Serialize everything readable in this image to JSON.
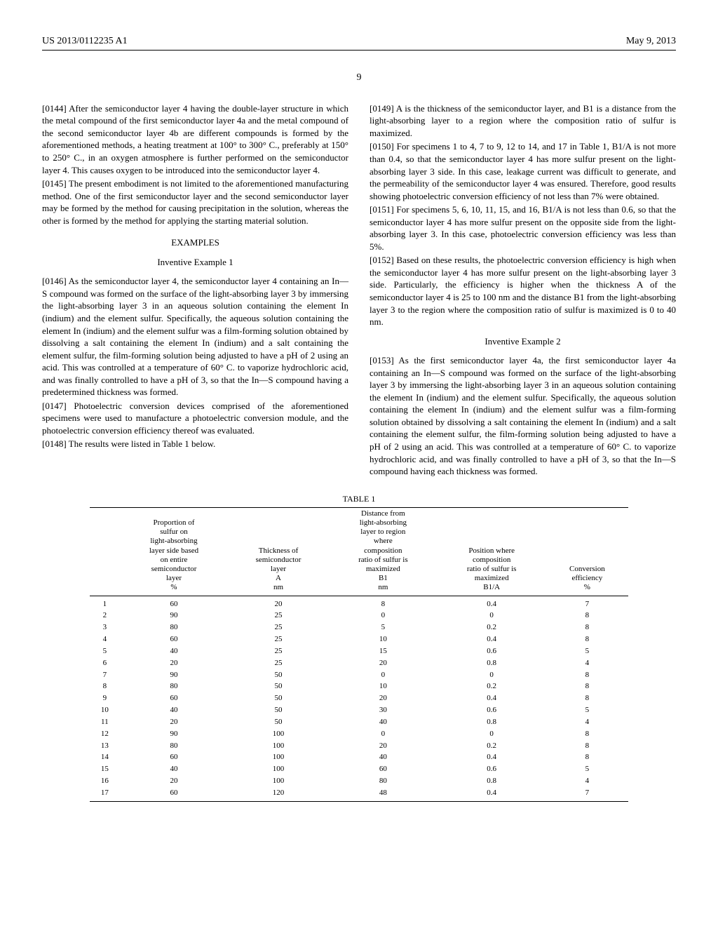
{
  "header": {
    "pub_number": "US 2013/0112235 A1",
    "pub_date": "May 9, 2013",
    "page_number": "9"
  },
  "left_column": {
    "p0144": "[0144]   After the semiconductor layer 4 having the double-layer structure in which the metal compound of the first semiconductor layer 4a and the metal compound of the second semiconductor layer 4b are different compounds is formed by the aforementioned methods, a heating treatment at 100° to 300° C., preferably at 150° to 250° C., in an oxygen atmosphere is further performed on the semiconductor layer 4. This causes oxygen to be introduced into the semiconductor layer 4.",
    "p0145": "[0145]   The present embodiment is not limited to the aforementioned manufacturing method. One of the first semiconductor layer and the second semiconductor layer may be formed by the method for causing precipitation in the solution, whereas the other is formed by the method for applying the starting material solution.",
    "examples_heading": "EXAMPLES",
    "inv_ex1_heading": "Inventive Example 1",
    "p0146": "[0146]   As the semiconductor layer 4, the semiconductor layer 4 containing an In—S compound was formed on the surface of the light-absorbing layer 3 by immersing the light-absorbing layer 3 in an aqueous solution containing the element In (indium) and the element sulfur. Specifically, the aqueous solution containing the element In (indium) and the element sulfur was a film-forming solution obtained by dissolving a salt containing the element In (indium) and a salt containing the element sulfur, the film-forming solution being adjusted to have a pH of 2 using an acid. This was controlled at a temperature of 60° C. to vaporize hydrochloric acid, and was finally controlled to have a pH of 3, so that the In—S compound having a predetermined thickness was formed.",
    "p0147": "[0147]   Photoelectric conversion devices comprised of the aforementioned specimens were used to manufacture a photoelectric conversion module, and the photoelectric conversion efficiency thereof was evaluated.",
    "p0148": "[0148]   The results were listed in Table 1 below."
  },
  "right_column": {
    "p0149": "[0149]   A is the thickness of the semiconductor layer, and B1 is a distance from the light-absorbing layer to a region where the composition ratio of sulfur is maximized.",
    "p0150": "[0150]   For specimens 1 to 4, 7 to 9, 12 to 14, and 17 in Table 1, B1/A is not more than 0.4, so that the semiconductor layer 4 has more sulfur present on the light-absorbing layer 3 side. In this case, leakage current was difficult to generate, and the permeability of the semiconductor layer 4 was ensured. Therefore, good results showing photoelectric conversion efficiency of not less than 7% were obtained.",
    "p0151": "[0151]   For specimens 5, 6, 10, 11, 15, and 16, B1/A is not less than 0.6, so that the semiconductor layer 4 has more sulfur present on the opposite side from the light-absorbing layer 3. In this case, photoelectric conversion efficiency was less than 5%.",
    "p0152": "[0152]   Based on these results, the photoelectric conversion efficiency is high when the semiconductor layer 4 has more sulfur present on the light-absorbing layer 3 side. Particularly, the efficiency is higher when the thickness A of the semiconductor layer 4 is 25 to 100 nm and the distance B1 from the light-absorbing layer 3 to the region where the composition ratio of sulfur is maximized is 0 to 40 nm.",
    "inv_ex2_heading": "Inventive Example 2",
    "p0153": "[0153]   As the first semiconductor layer 4a, the first semiconductor layer 4a containing an In—S compound was formed on the surface of the light-absorbing layer 3 by immersing the light-absorbing layer 3 in an aqueous solution containing the element In (indium) and the element sulfur. Specifically, the aqueous solution containing the element In (indium) and the element sulfur was a film-forming solution obtained by dissolving a salt containing the element In (indium) and a salt containing the element sulfur, the film-forming solution being adjusted to have a pH of 2 using an acid. This was controlled at a temperature of 60° C. to vaporize hydrochloric acid, and was finally controlled to have a pH of 3, so that the In—S compound having each thickness was formed."
  },
  "table1": {
    "caption": "TABLE 1",
    "columns": [
      "",
      "Proportion of\nsulfur on\nlight-absorbing\nlayer side based\non entire\nsemiconductor\nlayer\n%",
      "Thickness of\nsemiconductor\nlayer\nA\nnm",
      "Distance from\nlight-absorbing\nlayer to region\nwhere\ncomposition\nratio of sulfur is\nmaximized\nB1\nnm",
      "Position where\ncomposition\nratio of sulfur is\nmaximized\nB1/A",
      "Conversion\nefficiency\n%"
    ],
    "rows": [
      [
        "1",
        "60",
        "20",
        "8",
        "0.4",
        "7"
      ],
      [
        "2",
        "90",
        "25",
        "0",
        "0",
        "8"
      ],
      [
        "3",
        "80",
        "25",
        "5",
        "0.2",
        "8"
      ],
      [
        "4",
        "60",
        "25",
        "10",
        "0.4",
        "8"
      ],
      [
        "5",
        "40",
        "25",
        "15",
        "0.6",
        "5"
      ],
      [
        "6",
        "20",
        "25",
        "20",
        "0.8",
        "4"
      ],
      [
        "7",
        "90",
        "50",
        "0",
        "0",
        "8"
      ],
      [
        "8",
        "80",
        "50",
        "10",
        "0.2",
        "8"
      ],
      [
        "9",
        "60",
        "50",
        "20",
        "0.4",
        "8"
      ],
      [
        "10",
        "40",
        "50",
        "30",
        "0.6",
        "5"
      ],
      [
        "11",
        "20",
        "50",
        "40",
        "0.8",
        "4"
      ],
      [
        "12",
        "90",
        "100",
        "0",
        "0",
        "8"
      ],
      [
        "13",
        "80",
        "100",
        "20",
        "0.2",
        "8"
      ],
      [
        "14",
        "60",
        "100",
        "40",
        "0.4",
        "8"
      ],
      [
        "15",
        "40",
        "100",
        "60",
        "0.6",
        "5"
      ],
      [
        "16",
        "20",
        "100",
        "80",
        "0.8",
        "4"
      ],
      [
        "17",
        "60",
        "120",
        "48",
        "0.4",
        "7"
      ]
    ]
  }
}
